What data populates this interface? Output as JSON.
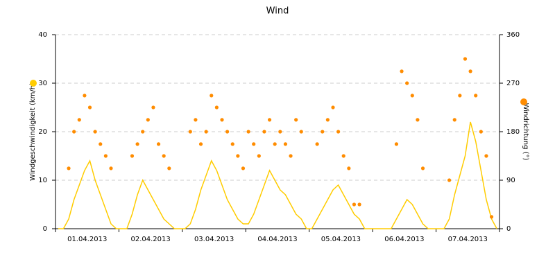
{
  "chart_data": {
    "type": "line",
    "title": "Wind",
    "categories": [
      "01.04.2013",
      "02.04.2013",
      "03.04.2013",
      "04.04.2013",
      "05.04.2013",
      "06.04.2013",
      "07.04.2013"
    ],
    "y_label": "Windgeschwindigkeit (km/h)",
    "y2_label": "Windrichtung (°)",
    "ylim": [
      0,
      40
    ],
    "yticks": [
      0,
      10,
      20,
      30,
      40
    ],
    "y2lim": [
      0,
      360
    ],
    "y2ticks": [
      0,
      90,
      180,
      270,
      360
    ],
    "grid": true,
    "series": [
      {
        "name": "Windgeschwindigkeit",
        "color": "#ffcc00",
        "values": [
          [
            0,
            0,
            2,
            6,
            9,
            12,
            14,
            10,
            7,
            4,
            1,
            0
          ],
          [
            0,
            0,
            3,
            7,
            10,
            8,
            6,
            4,
            2,
            1,
            0,
            0
          ],
          [
            0,
            1,
            4,
            8,
            11,
            14,
            12,
            9,
            6,
            4,
            2,
            1
          ],
          [
            1,
            3,
            6,
            9,
            12,
            10,
            8,
            7,
            5,
            3,
            2,
            0
          ],
          [
            0,
            2,
            4,
            6,
            8,
            9,
            7,
            5,
            3,
            2,
            0,
            0
          ],
          [
            0,
            0,
            0,
            0,
            2,
            4,
            6,
            5,
            3,
            1,
            0,
            0
          ],
          [
            0,
            0,
            2,
            7,
            11,
            15,
            22,
            18,
            12,
            6,
            2,
            0
          ]
        ]
      },
      {
        "name": "Windrichtung",
        "color": "#ff8c00",
        "axis": "y2",
        "values": [
          [
            null,
            null,
            112,
            180,
            202,
            247,
            225,
            180,
            157,
            135,
            112,
            null
          ],
          [
            null,
            null,
            135,
            157,
            180,
            202,
            225,
            157,
            135,
            112,
            null,
            null
          ],
          [
            null,
            180,
            202,
            157,
            180,
            247,
            225,
            202,
            180,
            157,
            135,
            112
          ],
          [
            180,
            157,
            135,
            180,
            202,
            157,
            180,
            157,
            135,
            202,
            180,
            null
          ],
          [
            null,
            157,
            180,
            202,
            225,
            180,
            135,
            112,
            45,
            45,
            null,
            null
          ],
          [
            null,
            null,
            null,
            null,
            157,
            292,
            270,
            247,
            202,
            112,
            null,
            null
          ],
          [
            null,
            null,
            90,
            202,
            247,
            315,
            292,
            247,
            180,
            135,
            22,
            null
          ]
        ]
      }
    ]
  }
}
